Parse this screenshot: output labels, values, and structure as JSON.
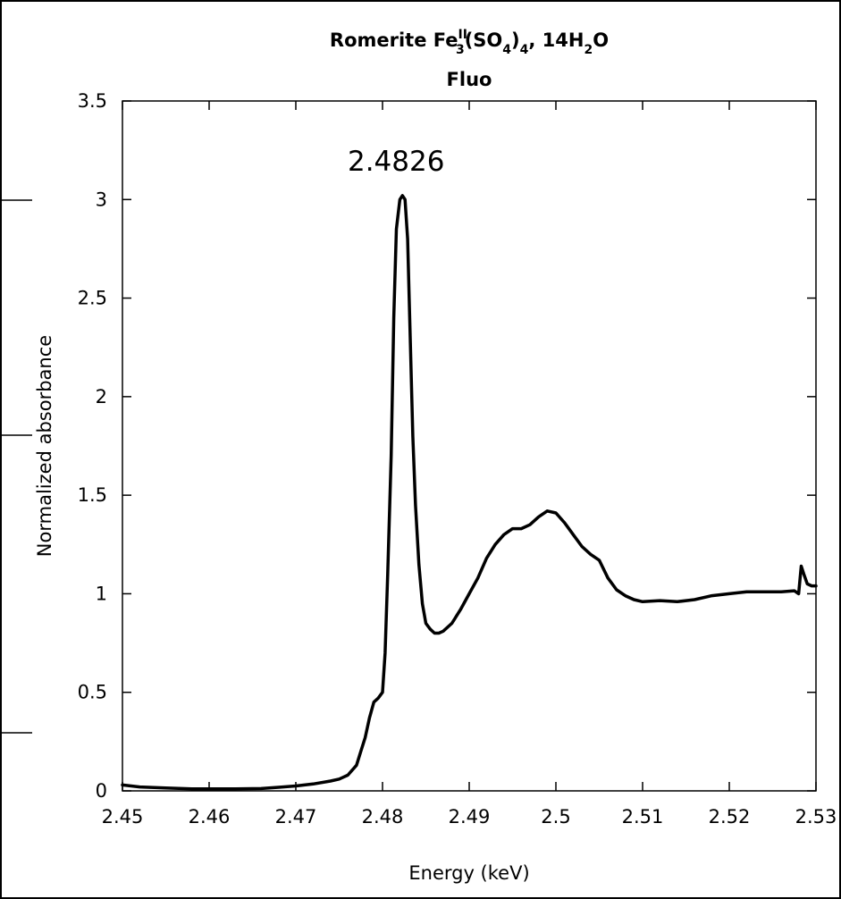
{
  "chart_data": {
    "type": "line",
    "title": {
      "mineral": "Romerite Fe",
      "sup": "II",
      "sub1": "3",
      "part2": "(SO",
      "sub2": "4",
      "part3": ")",
      "sub3": "4",
      "part4": ", 14H",
      "sub4": "2",
      "part5": "O"
    },
    "subtitle": "Fluo",
    "xlabel": "Energy (keV)",
    "ylabel": "Normalized absorbance",
    "xlim": [
      2.45,
      2.53
    ],
    "ylim": [
      0,
      3.5
    ],
    "x_ticks": [
      2.45,
      2.46,
      2.47,
      2.48,
      2.49,
      2.5,
      2.51,
      2.52,
      2.53
    ],
    "x_tick_labels": [
      "2.45",
      "2.46",
      "2.47",
      "2.48",
      "2.49",
      "2.5",
      "2.51",
      "2.52",
      "2.53"
    ],
    "y_ticks": [
      0,
      0.5,
      1,
      1.5,
      2,
      2.5,
      3,
      3.5
    ],
    "y_tick_labels": [
      "0",
      "0.5",
      "1",
      "1.5",
      "2",
      "2.5",
      "3",
      "3.5"
    ],
    "grid": false,
    "legend": "none",
    "annotations": [
      {
        "text": "2.4826",
        "x": 2.4826,
        "y": 3.02
      }
    ],
    "series": [
      {
        "color": "#000000",
        "x": [
          2.45,
          2.452,
          2.455,
          2.458,
          2.46,
          2.463,
          2.466,
          2.468,
          2.47,
          2.472,
          2.474,
          2.475,
          2.476,
          2.477,
          2.4775,
          2.478,
          2.4785,
          2.479,
          2.4795,
          2.48,
          2.4803,
          2.4806,
          2.481,
          2.4813,
          2.4816,
          2.482,
          2.4823,
          2.4826,
          2.4829,
          2.4832,
          2.4835,
          2.4838,
          2.4842,
          2.4846,
          2.485,
          2.4855,
          2.486,
          2.4865,
          2.487,
          2.488,
          2.489,
          2.49,
          2.491,
          2.492,
          2.493,
          2.494,
          2.495,
          2.496,
          2.497,
          2.498,
          2.499,
          2.5,
          2.501,
          2.502,
          2.503,
          2.504,
          2.505,
          2.506,
          2.507,
          2.508,
          2.509,
          2.51,
          2.512,
          2.514,
          2.516,
          2.518,
          2.52,
          2.522,
          2.524,
          2.526,
          2.5275,
          2.528,
          2.5283,
          2.5286,
          2.529,
          2.5295,
          2.53
        ],
        "values": [
          0.03,
          0.02,
          0.015,
          0.01,
          0.01,
          0.01,
          0.012,
          0.018,
          0.025,
          0.035,
          0.05,
          0.06,
          0.08,
          0.13,
          0.2,
          0.27,
          0.37,
          0.45,
          0.47,
          0.5,
          0.7,
          1.1,
          1.7,
          2.4,
          2.85,
          3.0,
          3.02,
          3.0,
          2.8,
          2.3,
          1.8,
          1.45,
          1.15,
          0.95,
          0.85,
          0.82,
          0.8,
          0.8,
          0.81,
          0.85,
          0.92,
          1.0,
          1.08,
          1.18,
          1.25,
          1.3,
          1.33,
          1.33,
          1.35,
          1.39,
          1.42,
          1.41,
          1.36,
          1.3,
          1.24,
          1.2,
          1.17,
          1.08,
          1.02,
          0.99,
          0.97,
          0.96,
          0.965,
          0.96,
          0.97,
          0.99,
          1.0,
          1.01,
          1.01,
          1.01,
          1.015,
          1.0,
          1.14,
          1.1,
          1.05,
          1.04,
          1.04
        ]
      }
    ]
  }
}
